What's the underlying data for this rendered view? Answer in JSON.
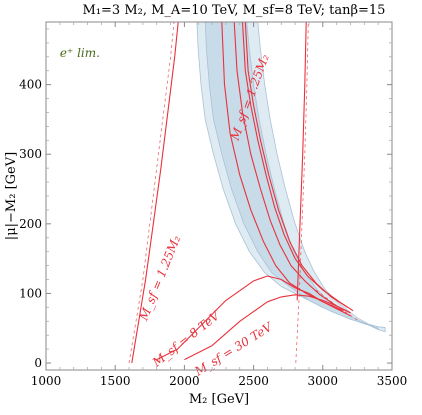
{
  "chart_data": {
    "type": "line",
    "title": "M₁=3 M₂, M_A=10 TeV, M_sf=8 TeV; tanβ=15",
    "xlabel": "M₂ [GeV]",
    "ylabel": "|μ|−M₂ [GeV]",
    "xlim": [
      1000,
      3500
    ],
    "ylim": [
      -10,
      490
    ],
    "xticks": [
      1000,
      1500,
      2000,
      2500,
      3000,
      3500
    ],
    "yticks": [
      0,
      100,
      200,
      300,
      400
    ],
    "grid": false,
    "legend": "none",
    "colors": {
      "line": "#e8323c",
      "band_outer": "#dfebf3",
      "band_inner": "#c7dbe8",
      "band_edge": "#a9c2d6",
      "legend_text": "#4a6a1a"
    },
    "annotations": [
      {
        "label": "M_sf = 1.25M₂",
        "at": [
          1850,
          120
        ]
      },
      {
        "label": "M_sf = 8 TeV",
        "at": [
          2030,
          30
        ]
      },
      {
        "label": "M_sf = 30 TeV",
        "at": [
          2370,
          15
        ]
      },
      {
        "label": "M_sf = 1.25M₂",
        "at": [
          2500,
          380
        ]
      },
      {
        "label": "e⁺ lim.",
        "at": [
          1100,
          440
        ]
      }
    ],
    "bands": [
      {
        "name": "outer",
        "left": [
          [
            2090,
            490
          ],
          [
            2100,
            450
          ],
          [
            2120,
            400
          ],
          [
            2150,
            350
          ],
          [
            2210,
            300
          ],
          [
            2280,
            250
          ],
          [
            2370,
            200
          ],
          [
            2470,
            160
          ],
          [
            2580,
            130
          ],
          [
            2700,
            110
          ],
          [
            2850,
            95
          ],
          [
            3000,
            80
          ],
          [
            3200,
            63
          ],
          [
            3400,
            52
          ],
          [
            3450,
            51
          ]
        ],
        "right": [
          [
            2530,
            490
          ],
          [
            2550,
            450
          ],
          [
            2580,
            400
          ],
          [
            2620,
            350
          ],
          [
            2670,
            300
          ],
          [
            2730,
            250
          ],
          [
            2800,
            200
          ],
          [
            2870,
            160
          ],
          [
            2940,
            130
          ],
          [
            3020,
            105
          ],
          [
            3120,
            85
          ],
          [
            3250,
            65
          ],
          [
            3400,
            48
          ],
          [
            3450,
            45
          ]
        ]
      },
      {
        "name": "inner",
        "left": [
          [
            2150,
            490
          ],
          [
            2160,
            450
          ],
          [
            2180,
            400
          ],
          [
            2210,
            350
          ],
          [
            2270,
            300
          ],
          [
            2340,
            250
          ],
          [
            2430,
            200
          ],
          [
            2530,
            160
          ],
          [
            2630,
            130
          ],
          [
            2760,
            110
          ],
          [
            2900,
            90
          ],
          [
            3050,
            75
          ],
          [
            3200,
            63
          ],
          [
            3400,
            50
          ]
        ],
        "right": [
          [
            2450,
            490
          ],
          [
            2470,
            450
          ],
          [
            2500,
            400
          ],
          [
            2540,
            350
          ],
          [
            2590,
            300
          ],
          [
            2650,
            250
          ],
          [
            2720,
            200
          ],
          [
            2790,
            160
          ],
          [
            2870,
            130
          ],
          [
            2960,
            105
          ],
          [
            3080,
            82
          ],
          [
            3220,
            65
          ],
          [
            3400,
            48
          ]
        ]
      }
    ],
    "series": [
      {
        "style": "dashed",
        "points": [
          [
            1600,
            0
          ],
          [
            1650,
            60
          ],
          [
            1700,
            120
          ],
          [
            1750,
            200
          ],
          [
            1800,
            280
          ],
          [
            1850,
            360
          ],
          [
            1900,
            440
          ],
          [
            1925,
            490
          ]
        ]
      },
      {
        "style": "solid",
        "points": [
          [
            1620,
            0
          ],
          [
            1670,
            60
          ],
          [
            1720,
            120
          ],
          [
            1775,
            200
          ],
          [
            1830,
            280
          ],
          [
            1880,
            360
          ],
          [
            1930,
            440
          ],
          [
            1955,
            490
          ]
        ]
      },
      {
        "style": "dashed",
        "points": [
          [
            2805,
            0
          ],
          [
            2830,
            100
          ],
          [
            2850,
            200
          ],
          [
            2870,
            300
          ],
          [
            2885,
            400
          ],
          [
            2895,
            490
          ]
        ]
      },
      {
        "style": "solid",
        "points": [
          [
            2815,
            90
          ],
          [
            2835,
            200
          ],
          [
            2855,
            300
          ],
          [
            2870,
            400
          ],
          [
            2880,
            490
          ]
        ]
      },
      {
        "style": "solid",
        "points": [
          [
            1800,
            5
          ],
          [
            1950,
            20
          ],
          [
            2100,
            50
          ],
          [
            2300,
            90
          ],
          [
            2500,
            118
          ],
          [
            2600,
            125
          ],
          [
            2700,
            120
          ],
          [
            2800,
            108
          ],
          [
            2900,
            100
          ],
          [
            3000,
            88
          ],
          [
            3100,
            78
          ],
          [
            3200,
            68
          ]
        ]
      },
      {
        "style": "solid",
        "points": [
          [
            2000,
            5
          ],
          [
            2200,
            25
          ],
          [
            2400,
            60
          ],
          [
            2600,
            88
          ],
          [
            2700,
            95
          ],
          [
            2800,
            98
          ],
          [
            2900,
            96
          ],
          [
            3000,
            90
          ],
          [
            3100,
            82
          ],
          [
            3200,
            72
          ]
        ]
      },
      {
        "style": "solid",
        "points": [
          [
            2270,
            490
          ],
          [
            2290,
            400
          ],
          [
            2330,
            330
          ],
          [
            2400,
            270
          ],
          [
            2480,
            220
          ],
          [
            2570,
            175
          ],
          [
            2660,
            140
          ],
          [
            2760,
            115
          ],
          [
            2880,
            100
          ],
          [
            3000,
            88
          ],
          [
            3150,
            75
          ]
        ]
      },
      {
        "style": "solid",
        "points": [
          [
            2360,
            490
          ],
          [
            2380,
            420
          ],
          [
            2420,
            360
          ],
          [
            2480,
            300
          ],
          [
            2550,
            250
          ],
          [
            2620,
            205
          ],
          [
            2690,
            170
          ],
          [
            2770,
            140
          ],
          [
            2870,
            118
          ],
          [
            2980,
            98
          ],
          [
            3100,
            82
          ],
          [
            3200,
            72
          ]
        ]
      },
      {
        "style": "solid",
        "points": [
          [
            2420,
            490
          ],
          [
            2440,
            420
          ],
          [
            2480,
            370
          ],
          [
            2530,
            320
          ],
          [
            2590,
            270
          ],
          [
            2650,
            225
          ],
          [
            2720,
            185
          ],
          [
            2800,
            150
          ],
          [
            2890,
            125
          ],
          [
            3000,
            105
          ],
          [
            3120,
            88
          ],
          [
            3220,
            75
          ]
        ]
      },
      {
        "style": "solid",
        "points": [
          [
            2440,
            490
          ],
          [
            2460,
            420
          ],
          [
            2500,
            370
          ],
          [
            2550,
            320
          ],
          [
            2610,
            270
          ],
          [
            2680,
            220
          ],
          [
            2760,
            175
          ],
          [
            2850,
            140
          ],
          [
            2950,
            115
          ],
          [
            3060,
            95
          ],
          [
            3180,
            80
          ]
        ]
      },
      {
        "style": "dashed",
        "points": [
          [
            2950,
            105
          ],
          [
            3050,
            90
          ],
          [
            3150,
            75
          ],
          [
            3250,
            62
          ]
        ]
      }
    ]
  }
}
